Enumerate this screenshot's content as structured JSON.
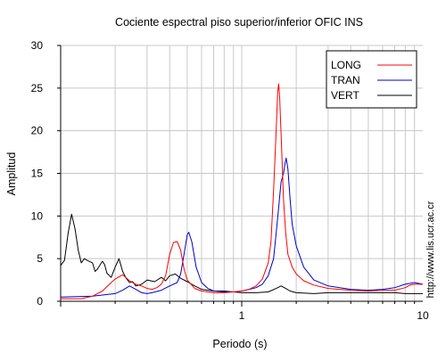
{
  "chart_data": {
    "type": "line",
    "title": "Cociente espectral piso superior/inferior  OFIC INS",
    "xlabel": "Periodo (s)",
    "ylabel": "Amplitud",
    "xscale": "log",
    "xlim": [
      0.1,
      10
    ],
    "ylim": [
      0,
      30
    ],
    "x_tick_labels": [
      "1",
      "10"
    ],
    "y_ticks": [
      0,
      5,
      10,
      15,
      20,
      25,
      30
    ],
    "grid": true,
    "legend_position": "top-right",
    "side_text": "http://www.lis.ucr.ac.cr",
    "series": [
      {
        "name": "LONG",
        "color": "#ff0000",
        "points": [
          [
            0.1,
            0.3
          ],
          [
            0.13,
            0.3
          ],
          [
            0.15,
            0.6
          ],
          [
            0.17,
            1.2
          ],
          [
            0.19,
            2.2
          ],
          [
            0.2,
            2.6
          ],
          [
            0.22,
            3.1
          ],
          [
            0.24,
            2.4
          ],
          [
            0.26,
            2.0
          ],
          [
            0.28,
            1.8
          ],
          [
            0.3,
            1.5
          ],
          [
            0.32,
            1.4
          ],
          [
            0.34,
            1.6
          ],
          [
            0.36,
            2.0
          ],
          [
            0.38,
            3.0
          ],
          [
            0.4,
            5.5
          ],
          [
            0.42,
            6.9
          ],
          [
            0.44,
            7.0
          ],
          [
            0.46,
            6.0
          ],
          [
            0.48,
            3.8
          ],
          [
            0.5,
            2.5
          ],
          [
            0.55,
            1.5
          ],
          [
            0.6,
            1.2
          ],
          [
            0.7,
            1.0
          ],
          [
            0.8,
            1.0
          ],
          [
            0.9,
            1.1
          ],
          [
            1.0,
            1.2
          ],
          [
            1.1,
            1.4
          ],
          [
            1.2,
            1.8
          ],
          [
            1.3,
            2.6
          ],
          [
            1.4,
            4.5
          ],
          [
            1.45,
            7.0
          ],
          [
            1.5,
            13.0
          ],
          [
            1.55,
            20.0
          ],
          [
            1.58,
            24.5
          ],
          [
            1.6,
            25.5
          ],
          [
            1.62,
            24.0
          ],
          [
            1.66,
            18.0
          ],
          [
            1.7,
            12.0
          ],
          [
            1.75,
            8.0
          ],
          [
            1.8,
            5.5
          ],
          [
            1.9,
            4.0
          ],
          [
            2.0,
            3.2
          ],
          [
            2.2,
            2.4
          ],
          [
            2.5,
            1.9
          ],
          [
            3.0,
            1.5
          ],
          [
            4.0,
            1.3
          ],
          [
            5.0,
            1.2
          ],
          [
            6.0,
            1.3
          ],
          [
            7.0,
            1.3
          ],
          [
            8.0,
            1.6
          ],
          [
            8.5,
            1.9
          ],
          [
            9.0,
            2.0
          ],
          [
            10.0,
            2.0
          ]
        ]
      },
      {
        "name": "TRAN",
        "color": "#0000cc",
        "points": [
          [
            0.1,
            0.5
          ],
          [
            0.15,
            0.6
          ],
          [
            0.2,
            0.9
          ],
          [
            0.22,
            1.3
          ],
          [
            0.24,
            1.8
          ],
          [
            0.26,
            1.4
          ],
          [
            0.28,
            1.0
          ],
          [
            0.3,
            0.9
          ],
          [
            0.32,
            1.0
          ],
          [
            0.36,
            1.3
          ],
          [
            0.4,
            1.8
          ],
          [
            0.44,
            2.2
          ],
          [
            0.46,
            3.2
          ],
          [
            0.48,
            5.5
          ],
          [
            0.5,
            7.8
          ],
          [
            0.51,
            8.1
          ],
          [
            0.53,
            7.0
          ],
          [
            0.56,
            4.0
          ],
          [
            0.6,
            2.2
          ],
          [
            0.65,
            1.5
          ],
          [
            0.7,
            1.2
          ],
          [
            0.8,
            1.1
          ],
          [
            0.9,
            1.1
          ],
          [
            1.0,
            1.2
          ],
          [
            1.1,
            1.4
          ],
          [
            1.2,
            1.6
          ],
          [
            1.3,
            2.0
          ],
          [
            1.4,
            3.0
          ],
          [
            1.5,
            5.0
          ],
          [
            1.55,
            8.0
          ],
          [
            1.6,
            11.0
          ],
          [
            1.65,
            14.0
          ],
          [
            1.7,
            15.0
          ],
          [
            1.73,
            16.0
          ],
          [
            1.76,
            16.8
          ],
          [
            1.8,
            15.5
          ],
          [
            1.85,
            12.0
          ],
          [
            1.9,
            9.0
          ],
          [
            2.0,
            6.5
          ],
          [
            2.2,
            4.0
          ],
          [
            2.5,
            2.5
          ],
          [
            3.0,
            1.8
          ],
          [
            4.0,
            1.4
          ],
          [
            5.0,
            1.3
          ],
          [
            6.0,
            1.4
          ],
          [
            7.0,
            1.6
          ],
          [
            8.0,
            2.0
          ],
          [
            9.0,
            2.2
          ],
          [
            10.0,
            2.0
          ]
        ]
      },
      {
        "name": "VERT",
        "color": "#000000",
        "points": [
          [
            0.1,
            4.2
          ],
          [
            0.105,
            4.8
          ],
          [
            0.11,
            8.0
          ],
          [
            0.115,
            10.2
          ],
          [
            0.12,
            8.5
          ],
          [
            0.125,
            6.0
          ],
          [
            0.13,
            4.5
          ],
          [
            0.135,
            5.0
          ],
          [
            0.14,
            4.8
          ],
          [
            0.15,
            4.5
          ],
          [
            0.155,
            3.5
          ],
          [
            0.16,
            3.8
          ],
          [
            0.17,
            4.7
          ],
          [
            0.175,
            4.3
          ],
          [
            0.18,
            3.3
          ],
          [
            0.19,
            2.8
          ],
          [
            0.2,
            4.0
          ],
          [
            0.21,
            5.0
          ],
          [
            0.22,
            3.5
          ],
          [
            0.23,
            2.7
          ],
          [
            0.24,
            2.2
          ],
          [
            0.25,
            2.3
          ],
          [
            0.26,
            1.8
          ],
          [
            0.28,
            2.0
          ],
          [
            0.3,
            2.5
          ],
          [
            0.33,
            2.3
          ],
          [
            0.36,
            2.8
          ],
          [
            0.38,
            2.4
          ],
          [
            0.4,
            3.0
          ],
          [
            0.43,
            3.2
          ],
          [
            0.46,
            2.7
          ],
          [
            0.5,
            2.3
          ],
          [
            0.55,
            1.8
          ],
          [
            0.6,
            1.4
          ],
          [
            0.7,
            1.2
          ],
          [
            0.8,
            1.2
          ],
          [
            0.9,
            1.1
          ],
          [
            1.0,
            1.0
          ],
          [
            1.2,
            1.0
          ],
          [
            1.4,
            1.1
          ],
          [
            1.55,
            1.5
          ],
          [
            1.65,
            1.8
          ],
          [
            1.75,
            1.5
          ],
          [
            1.85,
            1.2
          ],
          [
            2.0,
            1.0
          ],
          [
            2.5,
            0.9
          ],
          [
            3.0,
            1.0
          ],
          [
            4.0,
            1.0
          ],
          [
            5.0,
            1.0
          ],
          [
            6.0,
            1.0
          ],
          [
            7.0,
            1.0
          ],
          [
            8.0,
            0.9
          ],
          [
            9.0,
            0.9
          ],
          [
            10.0,
            0.9
          ]
        ]
      }
    ]
  }
}
